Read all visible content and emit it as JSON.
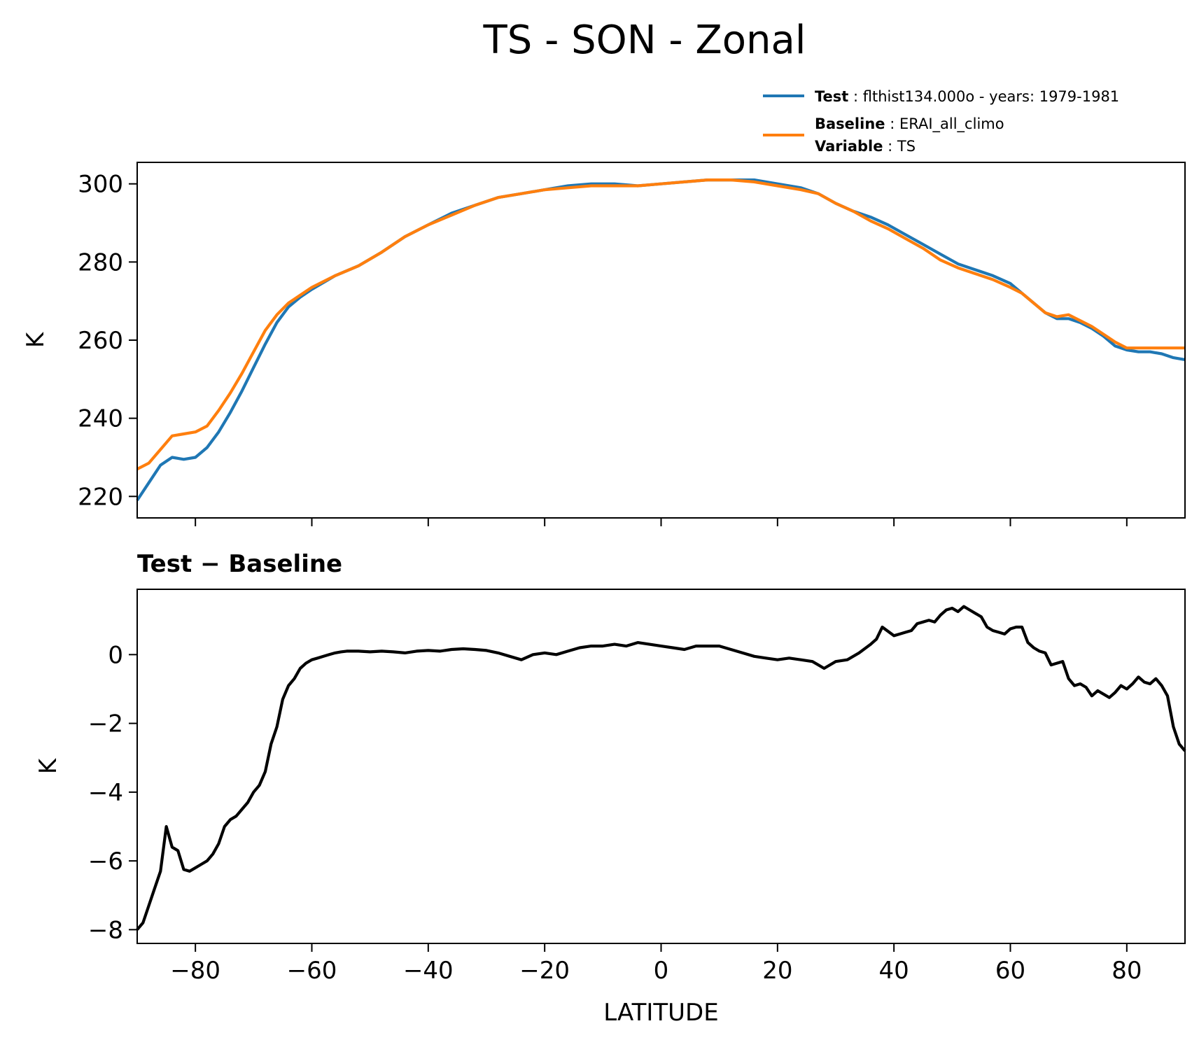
{
  "figure": {
    "title": "TS - SON - Zonal"
  },
  "legend": [
    {
      "series": "test",
      "label": "Test",
      "value": "flthist134.000o - years: 1979-1981",
      "color": "#1f77b4"
    },
    {
      "series": "baseline",
      "label": "Baseline",
      "value": "ERAI_all_climo",
      "color": "#ff7f0e",
      "label2": "Variable",
      "value2": "TS"
    }
  ],
  "chart_data": [
    {
      "type": "line",
      "title": "",
      "xlabel": "",
      "ylabel": "K",
      "xlim": [
        -90,
        90
      ],
      "ylim": [
        214.5,
        305.5
      ],
      "xticks": [
        -80,
        -60,
        -40,
        -20,
        0,
        20,
        40,
        60,
        80
      ],
      "yticks": [
        220,
        240,
        260,
        280,
        300
      ],
      "ytick_labels": [
        "220",
        "240",
        "260",
        "280",
        "300"
      ],
      "show_xtick_labels": false,
      "grid": false,
      "legend_position": "above-right",
      "x": [
        -90,
        -88,
        -86,
        -84,
        -82,
        -80,
        -78,
        -76,
        -74,
        -72,
        -70,
        -68,
        -66,
        -64,
        -62,
        -60,
        -56,
        -52,
        -48,
        -44,
        -40,
        -36,
        -32,
        -28,
        -24,
        -20,
        -16,
        -12,
        -8,
        -4,
        0,
        4,
        8,
        12,
        16,
        20,
        24,
        27,
        30,
        33,
        36,
        39,
        42,
        45,
        48,
        51,
        54,
        57,
        60,
        62,
        64,
        66,
        68,
        70,
        72,
        74,
        76,
        78,
        80,
        82,
        84,
        86,
        88,
        90
      ],
      "series": [
        {
          "name": "Test",
          "color": "#1f77b4",
          "values": [
            219,
            223.5,
            228,
            230,
            229.5,
            230,
            232.5,
            236.5,
            241.5,
            247,
            253,
            259,
            264.5,
            268.5,
            271,
            273,
            276.5,
            279,
            282.5,
            286.5,
            289.5,
            292.5,
            294.5,
            296.5,
            297.5,
            298.5,
            299.5,
            300,
            300,
            299.5,
            300,
            300.5,
            301,
            301,
            301,
            300,
            299,
            297.5,
            295,
            293,
            291.5,
            289.5,
            287,
            284.5,
            282,
            279.5,
            278,
            276.5,
            274.5,
            272,
            269.5,
            267,
            265.5,
            265.5,
            264.5,
            263,
            261,
            258.5,
            257.5,
            257,
            257,
            256.5,
            255.5,
            255
          ]
        },
        {
          "name": "Baseline",
          "color": "#ff7f0e",
          "values": [
            227,
            228.5,
            232,
            235.5,
            236,
            236.5,
            238,
            242,
            246.5,
            251.5,
            257,
            262.5,
            266.5,
            269.5,
            271.5,
            273.5,
            276.5,
            279,
            282.5,
            286.5,
            289.5,
            292,
            294.5,
            296.5,
            297.5,
            298.5,
            299,
            299.5,
            299.5,
            299.5,
            300,
            300.5,
            301,
            301,
            300.5,
            299.5,
            298.5,
            297.5,
            295,
            293,
            290.5,
            288.5,
            286,
            283.5,
            280.5,
            278.5,
            277,
            275.5,
            273.5,
            272,
            269.5,
            267,
            266,
            266.5,
            265,
            263.5,
            261.5,
            259.5,
            258,
            258,
            258,
            258,
            258,
            258
          ]
        }
      ]
    },
    {
      "type": "line",
      "title": "Test − Baseline",
      "xlabel": "LATITUDE",
      "ylabel": "K",
      "xlim": [
        -90,
        90
      ],
      "ylim": [
        -8.4,
        1.9
      ],
      "xticks": [
        -80,
        -60,
        -40,
        -20,
        0,
        20,
        40,
        60,
        80
      ],
      "xtick_labels": [
        "−80",
        "−60",
        "−40",
        "−20",
        "0",
        "20",
        "40",
        "60",
        "80"
      ],
      "yticks": [
        -8,
        -6,
        -4,
        -2,
        0
      ],
      "ytick_labels": [
        "−8",
        "−6",
        "−4",
        "−2",
        "0"
      ],
      "show_xtick_labels": true,
      "grid": false,
      "series": [
        {
          "name": "",
          "color": "#000000",
          "x": [
            -90,
            -89,
            -88,
            -87,
            -86,
            -85,
            -84,
            -83,
            -82,
            -81,
            -80,
            -79,
            -78,
            -77,
            -76,
            -75,
            -74,
            -73,
            -72,
            -71,
            -70,
            -69,
            -68,
            -67,
            -66,
            -65,
            -64,
            -63,
            -62,
            -61,
            -60,
            -59,
            -58,
            -57,
            -56,
            -55,
            -54,
            -52,
            -50,
            -48,
            -46,
            -44,
            -42,
            -40,
            -38,
            -36,
            -34,
            -32,
            -30,
            -28,
            -26,
            -24,
            -22,
            -20,
            -18,
            -16,
            -14,
            -12,
            -10,
            -8,
            -6,
            -4,
            -2,
            0,
            2,
            4,
            6,
            8,
            10,
            12,
            14,
            16,
            18,
            20,
            22,
            24,
            26,
            27,
            28,
            30,
            32,
            34,
            36,
            37,
            38,
            40,
            41,
            42,
            43,
            44,
            45,
            46,
            47,
            48,
            49,
            50,
            51,
            52,
            53,
            54,
            55,
            56,
            57,
            58,
            59,
            60,
            61,
            62,
            63,
            64,
            65,
            66,
            67,
            68,
            69,
            70,
            71,
            72,
            73,
            74,
            75,
            76,
            77,
            78,
            79,
            80,
            81,
            82,
            83,
            84,
            85,
            86,
            87,
            88,
            89,
            90
          ],
          "values": [
            -8,
            -7.8,
            -7.3,
            -6.8,
            -6.3,
            -5,
            -5.6,
            -5.7,
            -6.25,
            -6.3,
            -6.2,
            -6.1,
            -6,
            -5.8,
            -5.5,
            -5,
            -4.8,
            -4.7,
            -4.5,
            -4.3,
            -4,
            -3.8,
            -3.4,
            -2.6,
            -2.1,
            -1.3,
            -0.9,
            -0.7,
            -0.4,
            -0.25,
            -0.15,
            -0.1,
            -0.05,
            0,
            0.05,
            0.08,
            0.1,
            0.1,
            0.08,
            0.1,
            0.08,
            0.05,
            0.1,
            0.12,
            0.1,
            0.15,
            0.17,
            0.15,
            0.12,
            0.05,
            -0.05,
            -0.15,
            0,
            0.05,
            0,
            0.1,
            0.2,
            0.25,
            0.25,
            0.3,
            0.25,
            0.35,
            0.3,
            0.25,
            0.2,
            0.15,
            0.25,
            0.25,
            0.25,
            0.15,
            0.05,
            -0.05,
            -0.1,
            -0.15,
            -0.1,
            -0.15,
            -0.2,
            -0.3,
            -0.4,
            -0.2,
            -0.15,
            0.05,
            0.3,
            0.45,
            0.8,
            0.55,
            0.6,
            0.65,
            0.7,
            0.9,
            0.95,
            1,
            0.95,
            1.15,
            1.3,
            1.35,
            1.25,
            1.4,
            1.3,
            1.2,
            1.1,
            0.8,
            0.7,
            0.65,
            0.6,
            0.75,
            0.8,
            0.8,
            0.35,
            0.2,
            0.1,
            0.05,
            -0.3,
            -0.25,
            -0.2,
            -0.7,
            -0.9,
            -0.85,
            -0.95,
            -1.2,
            -1.05,
            -1.15,
            -1.25,
            -1.1,
            -0.9,
            -1,
            -0.85,
            -0.65,
            -0.8,
            -0.85,
            -0.7,
            -0.9,
            -1.2,
            -2.1,
            -2.6,
            -2.8
          ]
        }
      ]
    }
  ]
}
